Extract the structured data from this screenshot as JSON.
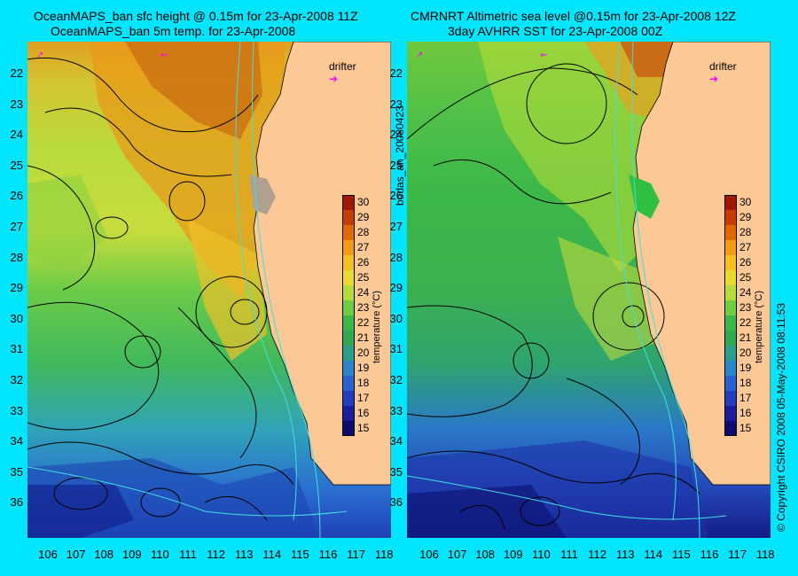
{
  "left_title": {
    "line1": "OceanMAPS_ban sfc height @ 0.15m for 23-Apr-2008 11Z",
    "line2": "OceanMAPS_ban 5m temp. for 23-Apr-2008"
  },
  "right_title": {
    "line1": "CMRNRT Altimetric sea level  @0.15m  for 23-Apr-2008 12Z",
    "line2": "3day AVHRR SST for 23-Apr-2008 00Z"
  },
  "latitudes": [
    "22",
    "23",
    "24",
    "25",
    "26",
    "27",
    "28",
    "29",
    "30",
    "31",
    "32",
    "33",
    "34",
    "35",
    "36"
  ],
  "longitudes": [
    "106",
    "107",
    "108",
    "109",
    "110",
    "111",
    "112",
    "113",
    "114",
    "115",
    "116",
    "117",
    "118"
  ],
  "colorbar": {
    "ticks": [
      "30",
      "29",
      "28",
      "27",
      "26",
      "25",
      "24",
      "23",
      "22",
      "21",
      "20",
      "19",
      "18",
      "17",
      "16",
      "15"
    ],
    "label": "temperature (°C)",
    "colors": [
      "#a01800",
      "#c83c00",
      "#e06a00",
      "#f29a10",
      "#f5c01e",
      "#e8dc30",
      "#b4dc38",
      "#70cc40",
      "#3cb848",
      "#30a850",
      "#28a08c",
      "#2a84c8",
      "#2a62d2",
      "#243cc0",
      "#1a1e9c",
      "#0c0c70"
    ]
  },
  "drifter_label": "drifter",
  "side_text_mid": "bodas_an_20080423",
  "side_text_right": "© Copyright CSIRO 2008   05-May-2008 08:11:53",
  "colors": {
    "background": "#00e5ff",
    "land": "#fcc896",
    "contour": "#000000",
    "bathymetry": "#40e0e0",
    "drifter": "#ff00ff"
  }
}
